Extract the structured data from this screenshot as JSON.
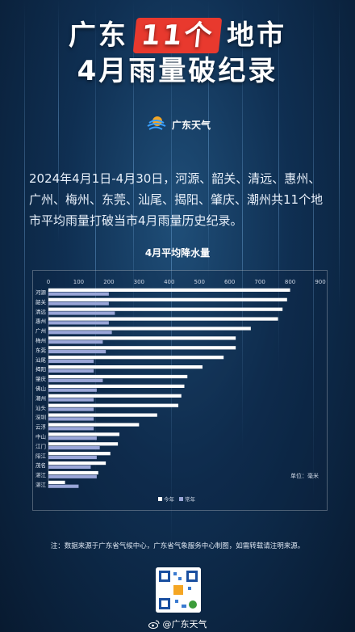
{
  "header": {
    "title_part1": "广东",
    "title_number": "11个",
    "title_part2": "地市",
    "title_line2": "4月雨量破纪录"
  },
  "brand": {
    "name": "广东天气"
  },
  "description": "2024年4月1日-4月30日，河源、韶关、清远、惠州、广州、梅州、东莞、汕尾、揭阳、肇庆、潮州共11个地市平均雨量打破当市4月雨量历史纪录。",
  "chart_data": {
    "type": "bar",
    "orientation": "horizontal",
    "title": "4月平均降水量",
    "unit_label": "单位：毫米",
    "xlim": [
      0,
      900
    ],
    "x_ticks": [
      0,
      100,
      200,
      300,
      400,
      500,
      600,
      700,
      800,
      900
    ],
    "categories": [
      "河源",
      "韶关",
      "清远",
      "惠州",
      "广州",
      "梅州",
      "东莞",
      "汕尾",
      "揭阳",
      "肇庆",
      "佛山",
      "潮州",
      "汕头",
      "深圳",
      "云浮",
      "中山",
      "江门",
      "阳江",
      "茂名",
      "湛江",
      "湛江"
    ],
    "series": [
      {
        "name": "今年",
        "color": "#ffffff",
        "values": [
          800,
          790,
          775,
          760,
          670,
          620,
          620,
          580,
          510,
          460,
          450,
          440,
          430,
          360,
          300,
          235,
          230,
          205,
          190,
          165,
          55
        ]
      },
      {
        "name": "常年",
        "color": "#9aa6d8",
        "values": [
          200,
          200,
          220,
          200,
          210,
          180,
          190,
          150,
          150,
          180,
          160,
          150,
          150,
          150,
          150,
          160,
          170,
          160,
          140,
          160,
          100
        ]
      }
    ],
    "grid": false,
    "legend_position": "bottom-center"
  },
  "footnote": "注：数据来源于广东省气候中心，广东省气象服务中心制图，如需转载请注明来源。",
  "weibo": {
    "handle": "@广东天气"
  },
  "colors": {
    "background": "#0f2f52",
    "accent_red": "#e8392e",
    "bar_this_year": "#ffffff",
    "bar_normal": "#9aa6d8"
  }
}
